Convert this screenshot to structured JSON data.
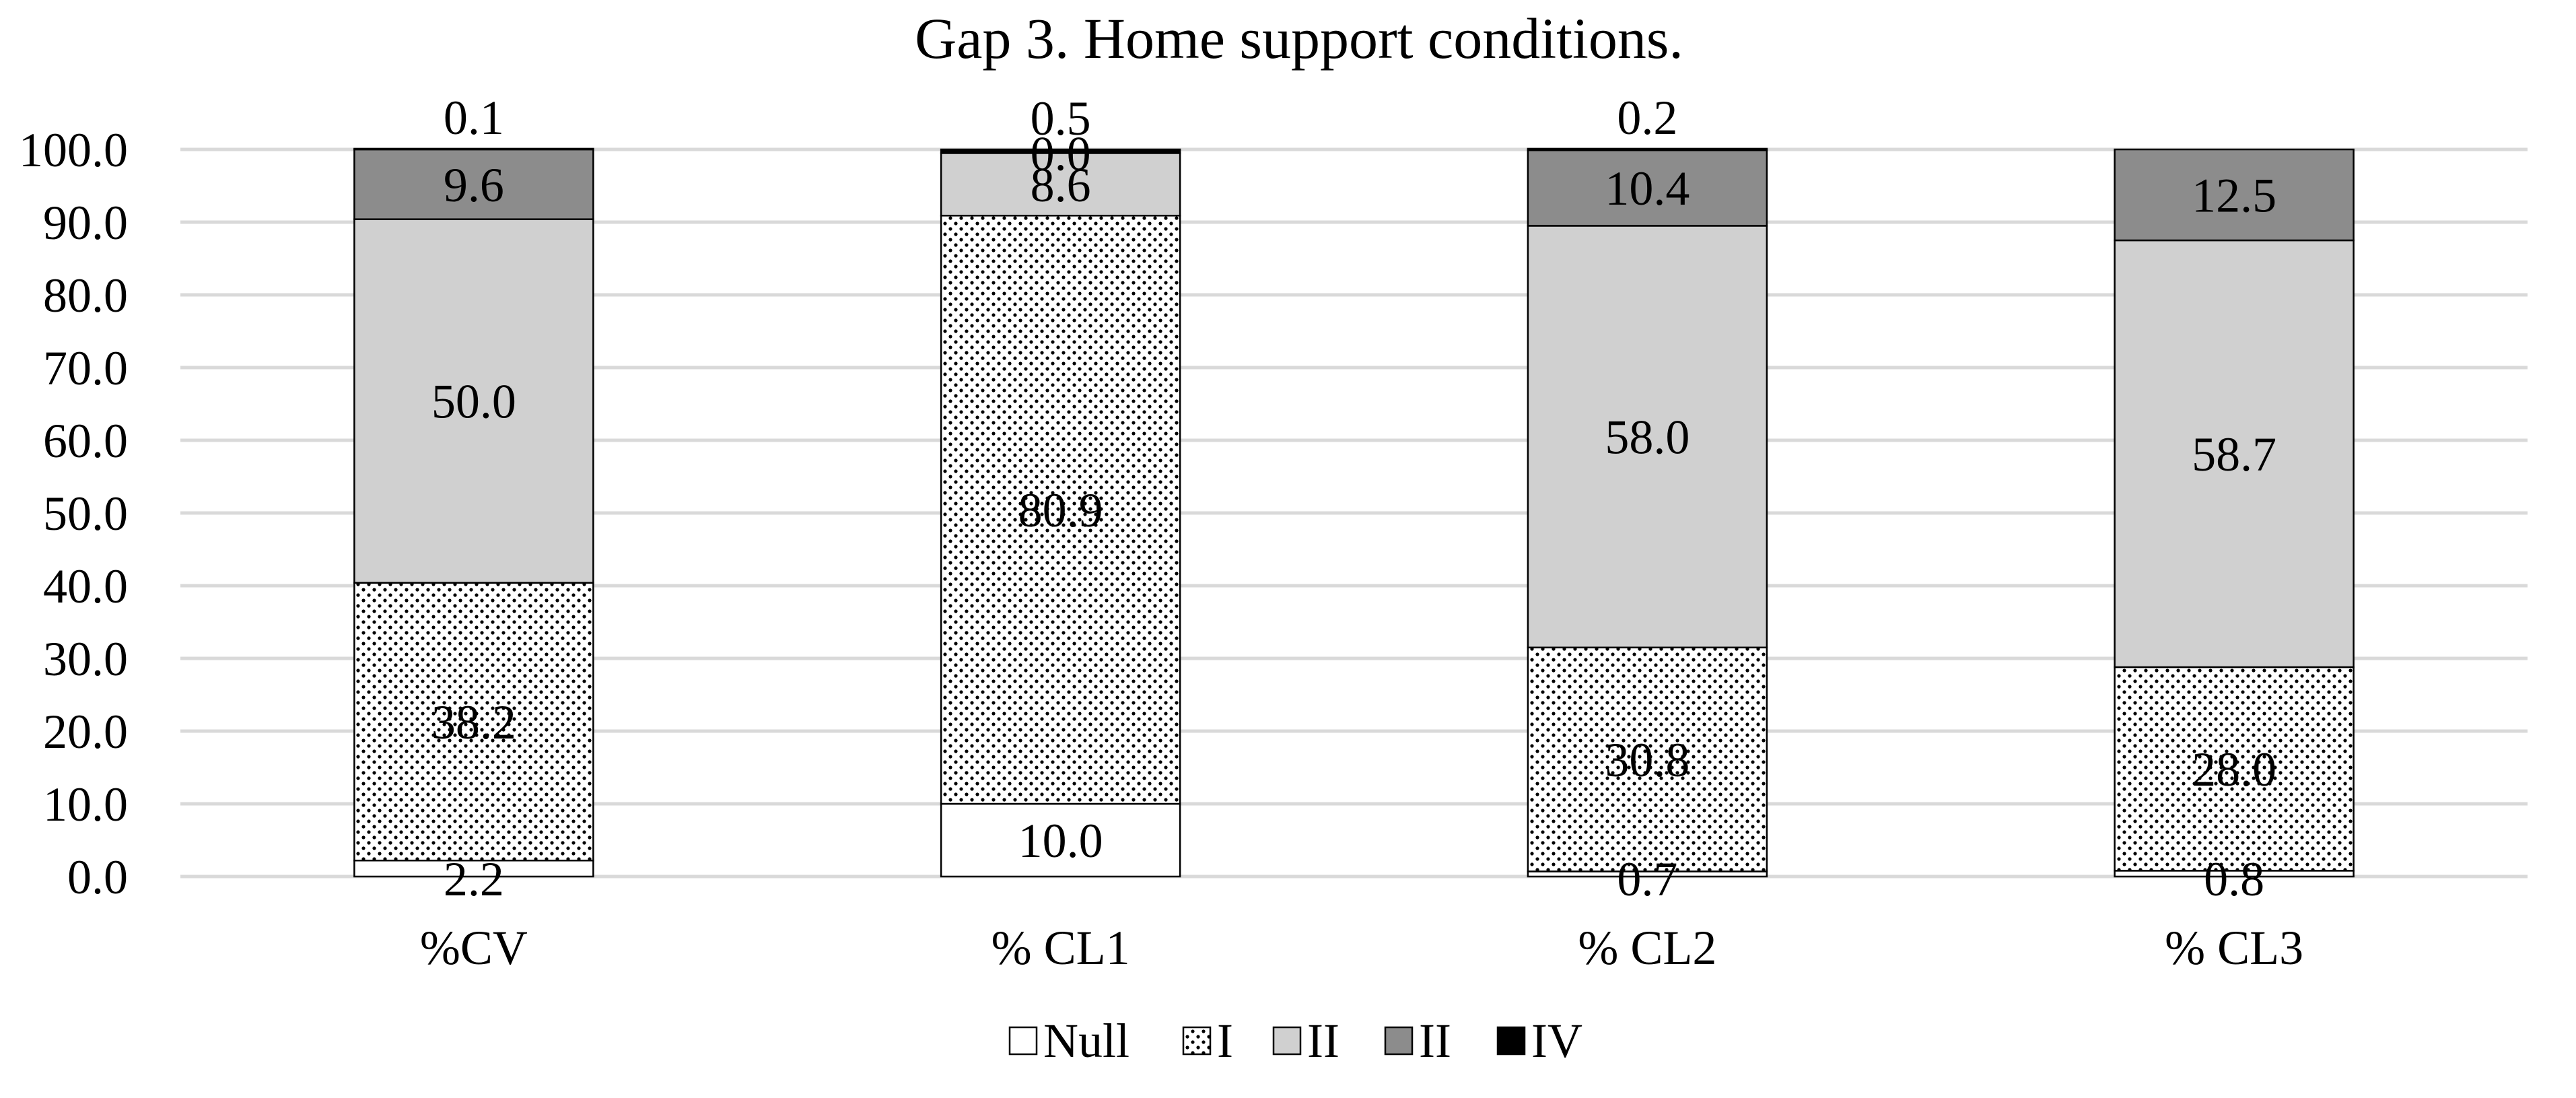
{
  "chart_data": {
    "type": "bar",
    "stacked": true,
    "title": "Gap 3. Home support conditions.",
    "categories": [
      "%CV",
      "%  CL1",
      "% CL2",
      "% CL3"
    ],
    "series": [
      {
        "name": "Null",
        "values": [
          2.2,
          10.0,
          0.7,
          0.8
        ],
        "color": "#ffffff",
        "pattern": "none"
      },
      {
        "name": "I",
        "values": [
          38.2,
          80.9,
          30.8,
          28.0
        ],
        "color": "#ffffff",
        "pattern": "dots"
      },
      {
        "name": "II",
        "values": [
          50.0,
          8.6,
          58.0,
          58.7
        ],
        "color": "#d0d0d0",
        "pattern": "none"
      },
      {
        "name": "II",
        "values": [
          9.6,
          0.0,
          10.4,
          12.5
        ],
        "color": "#8c8c8c",
        "pattern": "none"
      },
      {
        "name": "IV",
        "values": [
          0.1,
          0.5,
          0.2,
          null
        ],
        "color": "#000000",
        "pattern": "none"
      }
    ],
    "y_ticks": [
      "0.0",
      "10.0",
      "20.0",
      "30.0",
      "40.0",
      "50.0",
      "60.0",
      "70.0",
      "80.0",
      "90.0",
      "100.0"
    ],
    "ylim": [
      0,
      100
    ],
    "grid": true,
    "legend_position": "bottom",
    "xlabel": "",
    "ylabel": ""
  }
}
